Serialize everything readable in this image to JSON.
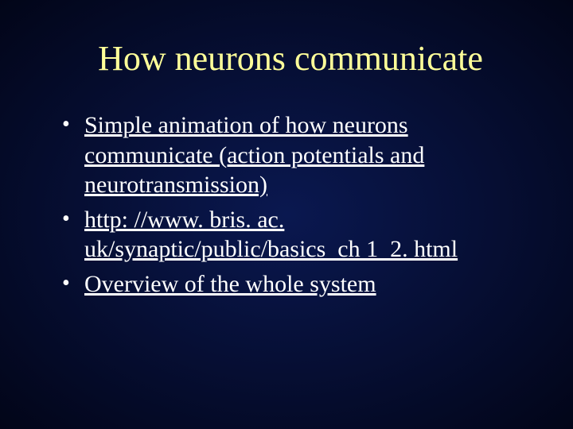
{
  "colors": {
    "background_center": "#0a1850",
    "background_edge": "#020518",
    "title_color": "#ffff99",
    "text_color": "#ffffff"
  },
  "typography": {
    "title_fontsize": 44,
    "body_fontsize": 30,
    "font_family": "Times New Roman"
  },
  "title": "How neurons communicate",
  "bullets": [
    "Simple animation of how neurons communicate (action potentials and neurotransmission)",
    "http: //www. bris. ac. uk/synaptic/public/basics_ch 1_2. html",
    "Overview of the whole system"
  ]
}
